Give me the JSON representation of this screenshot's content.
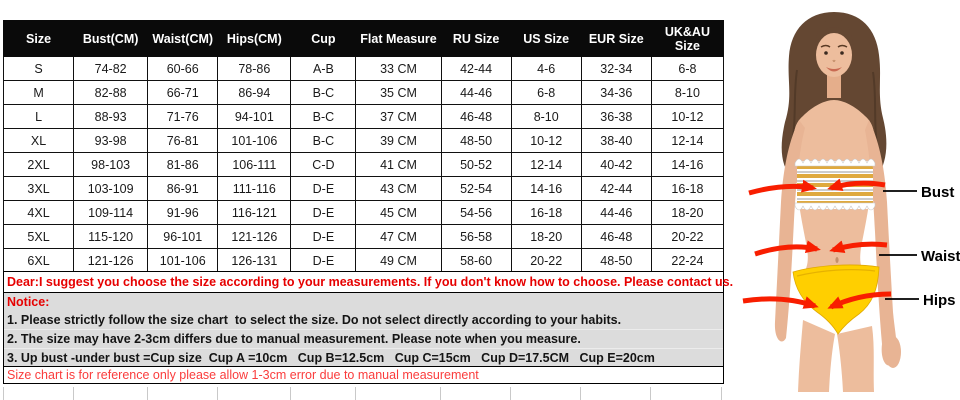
{
  "table": {
    "headers": [
      "Size",
      "Bust(CM)",
      "Waist(CM)",
      "Hips(CM)",
      "Cup",
      "Flat Measure",
      "RU Size",
      "US Size",
      "EUR Size",
      "UK&AU Size"
    ],
    "rows": [
      [
        "S",
        "74-82",
        "60-66",
        "78-86",
        "A-B",
        "33 CM",
        "42-44",
        "4-6",
        "32-34",
        "6-8"
      ],
      [
        "M",
        "82-88",
        "66-71",
        "86-94",
        "B-C",
        "35 CM",
        "44-46",
        "6-8",
        "34-36",
        "8-10"
      ],
      [
        "L",
        "88-93",
        "71-76",
        "94-101",
        "B-C",
        "37 CM",
        "46-48",
        "8-10",
        "36-38",
        "10-12"
      ],
      [
        "XL",
        "93-98",
        "76-81",
        "101-106",
        "B-C",
        "39 CM",
        "48-50",
        "10-12",
        "38-40",
        "12-14"
      ],
      [
        "2XL",
        "98-103",
        "81-86",
        "106-111",
        "C-D",
        "41 CM",
        "50-52",
        "12-14",
        "40-42",
        "14-16"
      ],
      [
        "3XL",
        "103-109",
        "86-91",
        "111-116",
        "D-E",
        "43 CM",
        "52-54",
        "14-16",
        "42-44",
        "16-18"
      ],
      [
        "4XL",
        "109-114",
        "91-96",
        "116-121",
        "D-E",
        "45 CM",
        "54-56",
        "16-18",
        "44-46",
        "18-20"
      ],
      [
        "5XL",
        "115-120",
        "96-101",
        "121-126",
        "D-E",
        "47 CM",
        "56-58",
        "18-20",
        "46-48",
        "20-22"
      ],
      [
        "6XL",
        "121-126",
        "101-106",
        "126-131",
        "D-E",
        "49 CM",
        "58-60",
        "20-22",
        "48-50",
        "22-24"
      ]
    ]
  },
  "notes": {
    "dear": "Dear:I suggest you choose the size according to your measurements. If you don't know how to choose. Please contact us.",
    "notice_title": "Notice:",
    "items": [
      "1. Please strictly follow the size chart  to select the size. Do not select directly according to your habits.",
      "2. The size may have 2-3cm differs due to manual measurement. Please note when you measure.",
      "3. Up bust -under bust =Cup size  Cup A =10cm   Cup B=12.5cm   Cup C=15cm   Cup D=17.5CM   Cup E=20cm"
    ],
    "reference": "Size chart is for reference only please allow 1-3cm error due to manual measurement"
  },
  "figure": {
    "labels": {
      "bust": "Bust",
      "waist": "Waist",
      "hips": "Hips"
    }
  },
  "colors": {
    "header_bg": "#0a0a0a",
    "header_text": "#ffffff",
    "notice_bg": "#dcdcdc",
    "note_red": "#e60000",
    "reference_red": "#fa3c3c",
    "arrow_red": "#f81e00",
    "bikini_yellow": "#ffcf00",
    "stripe_gold": "#dfa93e",
    "skin": "#edbd9d",
    "hair_brown": "#644732"
  }
}
